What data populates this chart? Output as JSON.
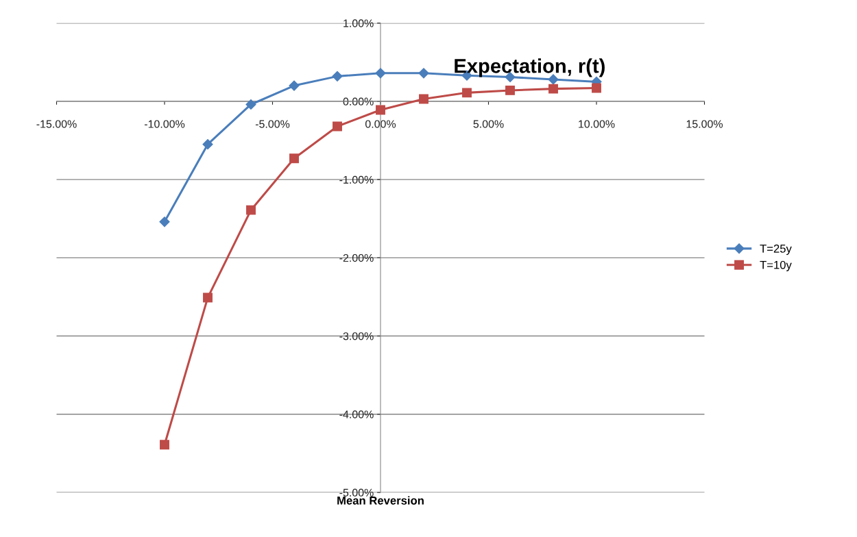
{
  "chart_data": {
    "type": "line",
    "title": "Expectation, r(t)",
    "xlabel": "Mean Reversion",
    "x": [
      -10,
      -8,
      -6,
      -4,
      -2,
      0,
      2,
      4,
      6,
      8,
      10
    ],
    "series": [
      {
        "name": "T=25y",
        "color": "#4a7ebb",
        "marker": "diamond",
        "values": [
          -1.54,
          -0.55,
          -0.04,
          0.2,
          0.32,
          0.36,
          0.36,
          0.33,
          0.31,
          0.28,
          0.25
        ]
      },
      {
        "name": "T=10y",
        "color": "#be4b48",
        "marker": "square",
        "values": [
          -4.39,
          -2.51,
          -1.39,
          -0.73,
          -0.32,
          -0.11,
          0.03,
          0.11,
          0.14,
          0.16,
          0.17
        ]
      }
    ],
    "xlim": [
      -15,
      15
    ],
    "xticks": [
      {
        "value": -15,
        "label": "-15.00%"
      },
      {
        "value": -10,
        "label": "-10.00%"
      },
      {
        "value": -5,
        "label": "-5.00%"
      },
      {
        "value": 0,
        "label": "0.00%"
      },
      {
        "value": 5,
        "label": "5.00%"
      },
      {
        "value": 10,
        "label": "10.00%"
      },
      {
        "value": 15,
        "label": "15.00%"
      }
    ],
    "ylim": [
      -5,
      1
    ],
    "yticks": [
      {
        "value": -5,
        "label": "-5.00%"
      },
      {
        "value": -4,
        "label": "-4.00%"
      },
      {
        "value": -3,
        "label": "-3.00%"
      },
      {
        "value": -2,
        "label": "-2.00%"
      },
      {
        "value": -1,
        "label": "-1.00%"
      },
      {
        "value": 0,
        "label": "0.00%"
      },
      {
        "value": 1,
        "label": "1.00%"
      }
    ],
    "grid": "y",
    "legend": "right",
    "line_style": "solid"
  }
}
